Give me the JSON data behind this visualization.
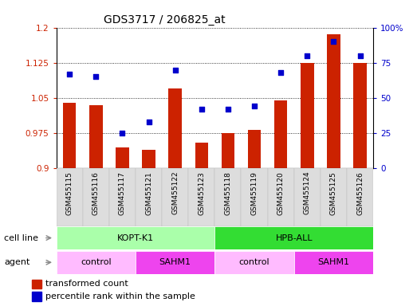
{
  "title": "GDS3717 / 206825_at",
  "samples": [
    "GSM455115",
    "GSM455116",
    "GSM455117",
    "GSM455121",
    "GSM455122",
    "GSM455123",
    "GSM455118",
    "GSM455119",
    "GSM455120",
    "GSM455124",
    "GSM455125",
    "GSM455126"
  ],
  "bar_values": [
    1.04,
    1.035,
    0.945,
    0.94,
    1.07,
    0.955,
    0.975,
    0.982,
    1.045,
    1.125,
    1.185,
    1.125
  ],
  "scatter_values": [
    67,
    65,
    25,
    33,
    70,
    42,
    42,
    44,
    68,
    80,
    90,
    80
  ],
  "bar_color": "#cc2200",
  "scatter_color": "#0000cc",
  "ylim_left": [
    0.9,
    1.2
  ],
  "ylim_right": [
    0,
    100
  ],
  "yticks_left": [
    0.9,
    0.975,
    1.05,
    1.125,
    1.2
  ],
  "yticks_right": [
    0,
    25,
    50,
    75,
    100
  ],
  "ytick_labels_left": [
    "0.9",
    "0.975",
    "1.05",
    "1.125",
    "1.2"
  ],
  "ytick_labels_right": [
    "0",
    "25",
    "50",
    "75",
    "100%"
  ],
  "cell_line_groups": [
    {
      "label": "KOPT-K1",
      "start": 0,
      "end": 6,
      "color": "#aaffaa"
    },
    {
      "label": "HPB-ALL",
      "start": 6,
      "end": 12,
      "color": "#33dd33"
    }
  ],
  "agent_groups": [
    {
      "label": "control",
      "start": 0,
      "end": 3,
      "color": "#ffbbff"
    },
    {
      "label": "SAHM1",
      "start": 3,
      "end": 6,
      "color": "#ee44ee"
    },
    {
      "label": "control",
      "start": 6,
      "end": 9,
      "color": "#ffbbff"
    },
    {
      "label": "SAHM1",
      "start": 9,
      "end": 12,
      "color": "#ee44ee"
    }
  ],
  "legend_bar_label": "transformed count",
  "legend_scatter_label": "percentile rank within the sample",
  "cell_line_label": "cell line",
  "agent_label": "agent"
}
